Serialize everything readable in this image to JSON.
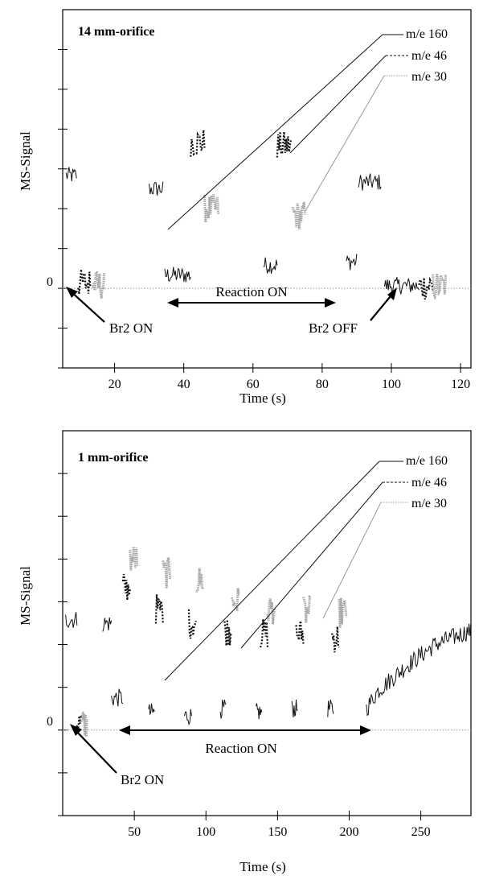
{
  "chart_data": [
    {
      "type": "line",
      "title": "14 mm-orifice",
      "xlabel": "Time (s)",
      "ylabel": "MS-Signal",
      "xlim": [
        5,
        123
      ],
      "ylim": [
        -12,
        42
      ],
      "xticks": [
        20,
        40,
        60,
        80,
        100,
        120
      ],
      "xtick_labels": [
        "20",
        "40",
        "60",
        "80",
        "100",
        "120"
      ],
      "yticks": [
        -12,
        -6,
        0,
        6,
        12,
        18,
        24,
        30,
        36
      ],
      "zero_label": "0",
      "colors": {
        "m160": "#111111",
        "m46": "#111111",
        "m30": "#a8a8a8",
        "baseline": "#9a9a9a"
      },
      "series": [
        {
          "name": "m/e 160",
          "style": "solid",
          "segments": [
            {
              "x": [
                6,
                9
              ],
              "y": [
                17,
                17
              ]
            },
            {
              "x": [
                30,
                34
              ],
              "y": [
                15,
                15
              ]
            },
            {
              "x": [
                34.5,
                42
              ],
              "y": [
                2,
                2
              ]
            },
            {
              "x": [
                63,
                67
              ],
              "y": [
                3.5,
                3.5
              ]
            },
            {
              "x": [
                87,
                90
              ],
              "y": [
                4,
                4
              ]
            },
            {
              "x": [
                90.5,
                97
              ],
              "y": [
                16,
                16
              ]
            },
            {
              "x": [
                98,
                108
              ],
              "y": [
                0.4,
                0.4
              ]
            }
          ]
        },
        {
          "name": "m/e 46",
          "style": "dashed",
          "segments": [
            {
              "x": [
                9.5,
                13
              ],
              "y": [
                0.8,
                0.8
              ]
            },
            {
              "x": [
                42,
                46
              ],
              "y": [
                22,
                22
              ]
            },
            {
              "x": [
                67,
                71
              ],
              "y": [
                21.5,
                21.5
              ]
            },
            {
              "x": [
                108,
                112
              ],
              "y": [
                0.4,
                0.4
              ]
            }
          ]
        },
        {
          "name": "m/e 30",
          "style": "dotted",
          "segments": [
            {
              "x": [
                13.5,
                17
              ],
              "y": [
                0.5,
                0.5
              ]
            },
            {
              "x": [
                46,
                50
              ],
              "y": [
                12,
                12
              ]
            },
            {
              "x": [
                71.5,
                75
              ],
              "y": [
                11,
                11
              ]
            },
            {
              "x": [
                112,
                116
              ],
              "y": [
                0.4,
                0.4
              ]
            }
          ]
        }
      ],
      "legend": [
        "m/e 160",
        "m/e 46",
        "m/e 30"
      ],
      "reaction_label": "Reaction ON",
      "reaction_range": [
        34,
        89
      ],
      "br2_on_label": "Br2 ON",
      "br2_off_label": "Br2 OFF"
    },
    {
      "type": "line",
      "title": "1 mm-orifice",
      "xlabel": "Time (s)",
      "ylabel": "MS-Signal",
      "xlim": [
        0,
        285
      ],
      "ylim": [
        -12,
        42
      ],
      "xticks": [
        50,
        100,
        150,
        200,
        250
      ],
      "xtick_labels": [
        "50",
        "100",
        "150",
        "200",
        "250"
      ],
      "yticks": [
        -12,
        -6,
        0,
        6,
        12,
        18,
        24,
        30,
        36
      ],
      "zero_label": "0",
      "colors": {
        "m160": "#111111",
        "m46": "#111111",
        "m30": "#a8a8a8",
        "baseline": "#9a9a9a"
      },
      "series": [
        {
          "name": "m/e 160",
          "style": "solid",
          "segments": [
            {
              "x": [
                2,
                10
              ],
              "y": [
                15.5,
                15.5
              ]
            },
            {
              "x": [
                28,
                34
              ],
              "y": [
                15,
                15
              ]
            },
            {
              "x": [
                34,
                42
              ],
              "y": [
                4.5,
                4.5
              ]
            },
            {
              "x": [
                60,
                64
              ],
              "y": [
                2.5,
                2.5
              ]
            },
            {
              "x": [
                85,
                90
              ],
              "y": [
                2,
                2
              ]
            },
            {
              "x": [
                110,
                114
              ],
              "y": [
                3,
                3
              ]
            },
            {
              "x": [
                135,
                139
              ],
              "y": [
                2.5,
                2.5
              ]
            },
            {
              "x": [
                160,
                164
              ],
              "y": [
                3,
                3
              ]
            },
            {
              "x": [
                185,
                189
              ],
              "y": [
                3,
                3
              ]
            },
            {
              "x": [
                212,
                220,
                240,
                260,
                285
              ],
              "y": [
                3,
                5.5,
                9,
                12,
                14
              ]
            }
          ]
        },
        {
          "name": "m/e 46",
          "style": "dashed",
          "segments": [
            {
              "x": [
                9,
                13
              ],
              "y": [
                1,
                1
              ]
            },
            {
              "x": [
                42,
                47
              ],
              "y": [
                20,
                20
              ]
            },
            {
              "x": [
                65,
                70
              ],
              "y": [
                17,
                17
              ]
            },
            {
              "x": [
                88,
                93
              ],
              "y": [
                15,
                15
              ]
            },
            {
              "x": [
                113,
                118
              ],
              "y": [
                14,
                14
              ]
            },
            {
              "x": [
                138,
                143
              ],
              "y": [
                13.5,
                13.5
              ]
            },
            {
              "x": [
                163,
                168
              ],
              "y": [
                13.5,
                13.5
              ]
            },
            {
              "x": [
                188,
                193
              ],
              "y": [
                13,
                13
              ]
            }
          ]
        },
        {
          "name": "m/e 30",
          "style": "dotted",
          "segments": [
            {
              "x": [
                13,
                17
              ],
              "y": [
                0.8,
                0.8
              ]
            },
            {
              "x": [
                47,
                52
              ],
              "y": [
                24,
                24
              ]
            },
            {
              "x": [
                70,
                75
              ],
              "y": [
                22,
                22
              ]
            },
            {
              "x": [
                93,
                98
              ],
              "y": [
                21,
                21
              ]
            },
            {
              "x": [
                118,
                123
              ],
              "y": [
                18,
                18
              ]
            },
            {
              "x": [
                143,
                148
              ],
              "y": [
                17,
                17
              ]
            },
            {
              "x": [
                168,
                173
              ],
              "y": [
                16.5,
                16.5
              ]
            },
            {
              "x": [
                193,
                198
              ],
              "y": [
                16.5,
                16.5
              ]
            }
          ]
        }
      ],
      "legend": [
        "m/e 160",
        "m/e 46",
        "m/e 30"
      ],
      "reaction_label": "Reaction ON",
      "reaction_range": [
        35,
        213
      ],
      "br2_on_label": "Br2 ON"
    }
  ]
}
